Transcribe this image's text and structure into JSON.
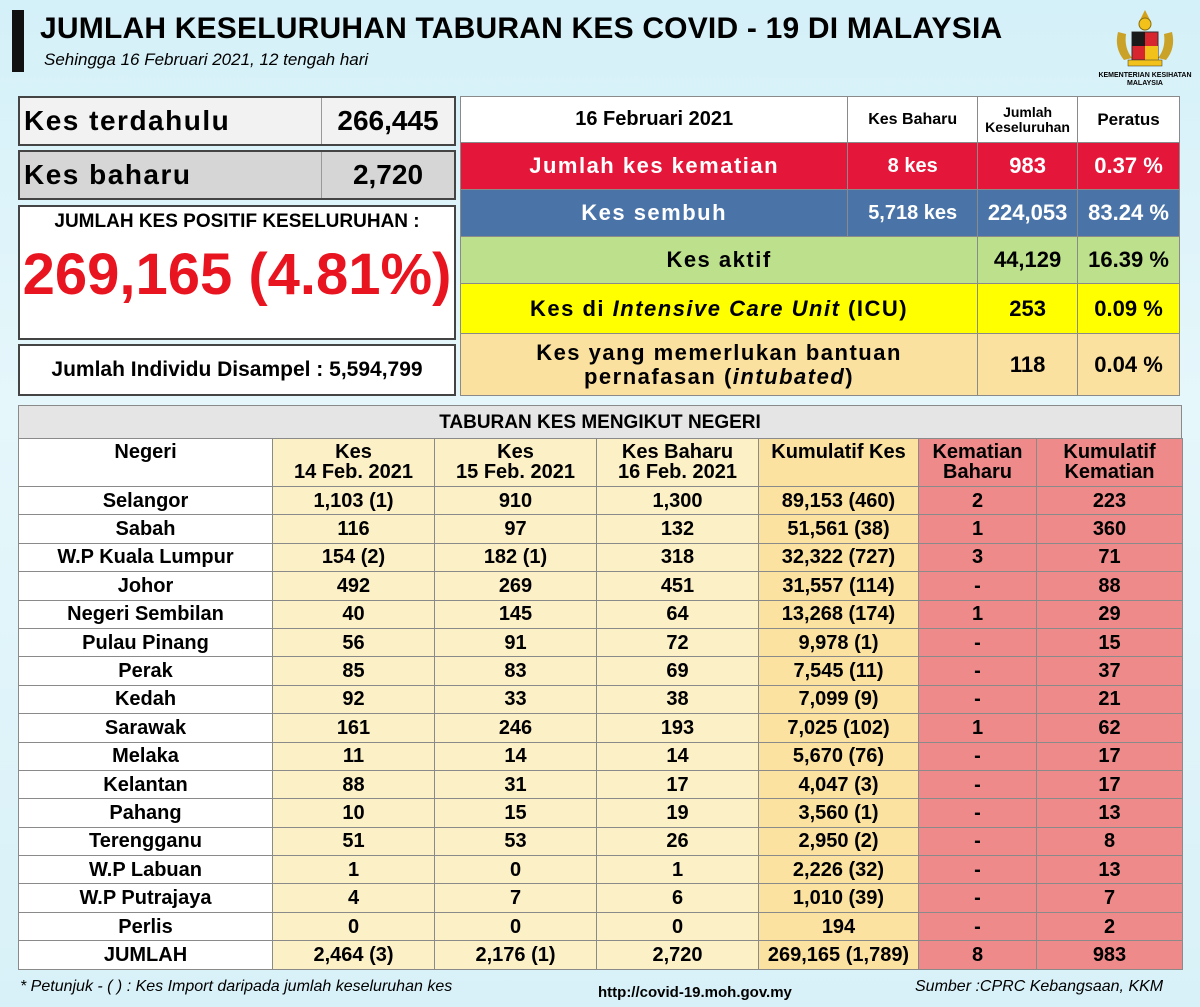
{
  "header": {
    "title": "JUMLAH KESELURUHAN TABURAN KES COVID - 19 DI MALAYSIA",
    "subtitle": "Sehingga 16 Februari 2021, 12 tengah hari",
    "logo_text_line1": "KEMENTERIAN KESIHATAN",
    "logo_text_line2": "MALAYSIA"
  },
  "left_panel": {
    "prev_label": "Kes terdahulu",
    "prev_value": "266,445",
    "new_label": "Kes baharu",
    "new_value": "2,720",
    "positive_label": "JUMLAH KES POSITIF KESELURUHAN :",
    "positive_value": "269,165 (4.81%)",
    "sampled_text": "Jumlah Individu Disampel : 5,594,799"
  },
  "summary": {
    "header_date": "16 Februari 2021",
    "header_new": "Kes Baharu",
    "header_total_line1": "Jumlah",
    "header_total_line2": "Keseluruhan",
    "header_pct": "Peratus",
    "deaths": {
      "label": "Jumlah kes kematian",
      "new": "8 kes",
      "total": "983",
      "pct": "0.37 %"
    },
    "recovered": {
      "label": "Kes sembuh",
      "new": "5,718 kes",
      "total": "224,053",
      "pct": "83.24 %"
    },
    "active": {
      "label": "Kes aktif",
      "total": "44,129",
      "pct": "16.39 %"
    },
    "icu": {
      "label_pre": "Kes di ",
      "label_italic": "Intensive Care Unit",
      "label_post": " (ICU)",
      "total": "253",
      "pct": "0.09 %"
    },
    "intubated": {
      "label_line1": "Kes yang memerlukan bantuan",
      "label_line2_pre": "pernafasan (",
      "label_line2_italic": "intubated",
      "label_line2_post": ")",
      "total": "118",
      "pct": "0.04 %"
    }
  },
  "states_table": {
    "caption": "TABURAN KES MENGIKUT NEGERI",
    "headers": [
      [
        "Negeri",
        ""
      ],
      [
        "Kes",
        "14 Feb. 2021"
      ],
      [
        "Kes",
        "15 Feb. 2021"
      ],
      [
        "Kes Baharu",
        "16 Feb. 2021"
      ],
      [
        "Kumulatif Kes",
        ""
      ],
      [
        "Kematian",
        "Baharu"
      ],
      [
        "Kumulatif",
        "Kematian"
      ]
    ],
    "rows": [
      [
        "Selangor",
        "1,103 (1)",
        "910",
        "1,300",
        "89,153 (460)",
        "2",
        "223"
      ],
      [
        "Sabah",
        "116",
        "97",
        "132",
        "51,561 (38)",
        "1",
        "360"
      ],
      [
        "W.P Kuala Lumpur",
        "154 (2)",
        "182 (1)",
        "318",
        "32,322 (727)",
        "3",
        "71"
      ],
      [
        "Johor",
        "492",
        "269",
        "451",
        "31,557 (114)",
        "-",
        "88"
      ],
      [
        "Negeri Sembilan",
        "40",
        "145",
        "64",
        "13,268 (174)",
        "1",
        "29"
      ],
      [
        "Pulau Pinang",
        "56",
        "91",
        "72",
        "9,978 (1)",
        "-",
        "15"
      ],
      [
        "Perak",
        "85",
        "83",
        "69",
        "7,545 (11)",
        "-",
        "37"
      ],
      [
        "Kedah",
        "92",
        "33",
        "38",
        "7,099 (9)",
        "-",
        "21"
      ],
      [
        "Sarawak",
        "161",
        "246",
        "193",
        "7,025 (102)",
        "1",
        "62"
      ],
      [
        "Melaka",
        "11",
        "14",
        "14",
        "5,670 (76)",
        "-",
        "17"
      ],
      [
        "Kelantan",
        "88",
        "31",
        "17",
        "4,047 (3)",
        "-",
        "17"
      ],
      [
        "Pahang",
        "10",
        "15",
        "19",
        "3,560 (1)",
        "-",
        "13"
      ],
      [
        "Terengganu",
        "51",
        "53",
        "26",
        "2,950 (2)",
        "-",
        "8"
      ],
      [
        "W.P Labuan",
        "1",
        "0",
        "1",
        "2,226 (32)",
        "-",
        "13"
      ],
      [
        "W.P Putrajaya",
        "4",
        "7",
        "6",
        "1,010 (39)",
        "-",
        "7"
      ],
      [
        "Perlis",
        "0",
        "0",
        "0",
        "194",
        "-",
        "2"
      ],
      [
        "JUMLAH",
        "2,464 (3)",
        "2,176 (1)",
        "2,720",
        "269,165 (1,789)",
        "8",
        "983"
      ]
    ]
  },
  "footer": {
    "note": "* Petunjuk  - (   ) : Kes Import daripada jumlah keseluruhan kes",
    "url": "http://covid-19.moh.gov.my",
    "source": "Sumber :CPRC Kebangsaan,  KKM"
  }
}
